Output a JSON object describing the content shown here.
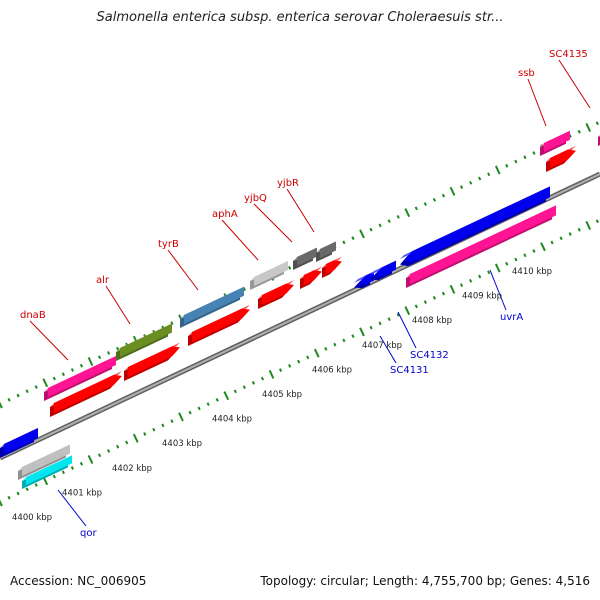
{
  "title": "Salmonella enterica subsp. enterica serovar Choleraesuis str...",
  "footer": {
    "accession": "Accession: NC_006905",
    "summary": "Topology: circular; Length: 4,755,700 bp; Genes: 4,516"
  },
  "colors": {
    "forward_label": "#cc0000",
    "reverse_label": "#0000cc",
    "backbone": "#8a8a8a",
    "ticks": "#1e8a1e",
    "cds": "#ff0000"
  },
  "forward_genes": [
    {
      "name": "dnaB",
      "color": "#ff1493"
    },
    {
      "name": "alr",
      "color": "#6b8e23"
    },
    {
      "name": "tyrB",
      "color": "#4682b4"
    },
    {
      "name": "aphA",
      "color": "#c8c8c8"
    },
    {
      "name": "yjbQ",
      "color": "#696969"
    },
    {
      "name": "yjbR",
      "color": "#696969"
    },
    {
      "name": "ssb",
      "color": "#ff1493"
    },
    {
      "name": "SC4135",
      "color": "#ff1493"
    }
  ],
  "reverse_genes": [
    {
      "name": "qor",
      "color": "#0000ee"
    },
    {
      "name": "SC4131",
      "color": "#0000ee"
    },
    {
      "name": "SC4132",
      "color": "#0000ee"
    },
    {
      "name": "uvrA",
      "color": "#0000ee"
    }
  ],
  "scale_labels": [
    "4400 kbp",
    "4401 kbp",
    "4402 kbp",
    "4403 kbp",
    "4404 kbp",
    "4405 kbp",
    "4406 kbp",
    "4407 kbp",
    "4408 kbp",
    "4409 kbp",
    "4410 kbp"
  ]
}
